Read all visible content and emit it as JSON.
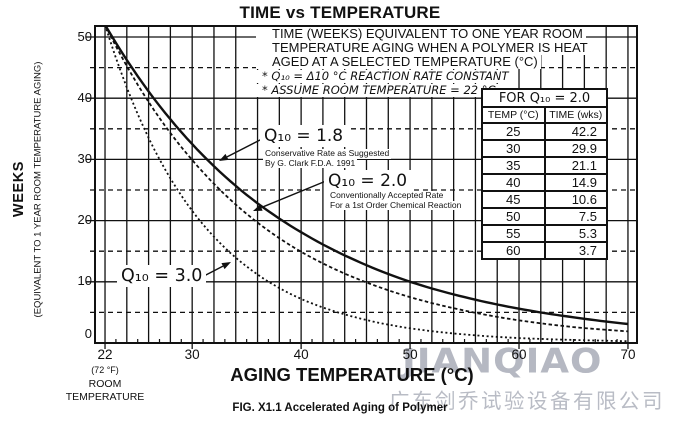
{
  "title": "TIME vs TEMPERATURE",
  "description": {
    "line1": "TIME (WEEKS) EQUIVALENT TO ONE YEAR ROOM",
    "line2": "TEMPERATURE AGING WHEN A POLYMER IS HEAT",
    "line3": "AGED AT A SELECTED TEMPERATURE (°C)",
    "note1": "* Q₁₀ = Δ10 °C REACTION RATE CONSTANT",
    "note2": "* ASSUME ROOM TEMPERATURE = 22 °C"
  },
  "curve_labels": {
    "q18": {
      "label": "Q₁₀ = 1.8",
      "caption1": "Conservative Rate as Suggested",
      "caption2": "By G. Clark F.D.A. 1991"
    },
    "q20": {
      "label": "Q₁₀ = 2.0",
      "caption1": "Conventionally Accepted Rate",
      "caption2": "For a 1st Order Chemical Reaction"
    },
    "q30": {
      "label": "Q₁₀ = 3.0"
    }
  },
  "table": {
    "title": "FOR Q₁₀ = 2.0",
    "col1": "TEMP (°C)",
    "col2": "TIME (wks)",
    "rows": [
      [
        "25",
        "42.2"
      ],
      [
        "30",
        "29.9"
      ],
      [
        "35",
        "21.1"
      ],
      [
        "40",
        "14.9"
      ],
      [
        "45",
        "10.6"
      ],
      [
        "50",
        "7.5"
      ],
      [
        "55",
        "5.3"
      ],
      [
        "60",
        "3.7"
      ]
    ]
  },
  "axes": {
    "y_title": "WEEKS",
    "y_subtitle": "(EQUIVALENT TO 1 YEAR ROOM TEMPERATURE AGING)",
    "x_title": "AGING TEMPERATURE (°C)",
    "room_note1": "(72 °F)",
    "room_note2": "ROOM",
    "room_note3": "TEMPERATURE",
    "y_ticks": [
      "50",
      "40",
      "30",
      "20",
      "10",
      "0"
    ],
    "x_ticks": [
      "22",
      "30",
      "40",
      "50",
      "60",
      "70"
    ]
  },
  "caption": "FIG. X1.1 Accelerated Aging of Polymer",
  "watermark": {
    "latin": "JIANQIAO",
    "cjk": "广东剑乔试验设备有限公司"
  },
  "colors": {
    "ink": "#111111",
    "watermark": "#b5b8c2",
    "background": "#ffffff"
  },
  "chart_data": {
    "type": "line",
    "title": "TIME vs TEMPERATURE",
    "xlabel": "AGING TEMPERATURE (°C)",
    "ylabel": "WEEKS (EQUIVALENT TO 1 YEAR ROOM TEMPERATURE AGING)",
    "xlim": [
      21.08,
      70.83
    ],
    "ylim": [
      0,
      51.8
    ],
    "x_tick_values": [
      22,
      30,
      40,
      50,
      60,
      70
    ],
    "y_tick_values": [
      0,
      10,
      20,
      30,
      40,
      50
    ],
    "x_grid_step": 2,
    "y_solid_grid_step": 10,
    "y_dashed_grid_values": [
      5,
      15,
      25,
      35,
      45
    ],
    "grid": true,
    "legend_position": "inline-labels",
    "series": [
      {
        "name": "Q₁₀ = 1.8",
        "line_style": "solid",
        "q10": 1.8,
        "x": [
          22,
          25,
          30,
          35,
          40,
          45,
          50,
          55,
          60,
          65,
          70
        ],
        "y": [
          52,
          43.6,
          32.5,
          24.2,
          18.1,
          13.5,
          10.0,
          7.5,
          5.6,
          4.2,
          3.1
        ]
      },
      {
        "name": "Q₁₀ = 2.0",
        "line_style": "dashed",
        "q10": 2.0,
        "x": [
          22,
          25,
          30,
          35,
          40,
          45,
          50,
          55,
          60,
          65,
          70
        ],
        "y": [
          52,
          42.2,
          29.9,
          21.1,
          14.9,
          10.6,
          7.5,
          5.3,
          3.7,
          2.6,
          1.9
        ]
      },
      {
        "name": "Q₁₀ = 3.0",
        "line_style": "dotted",
        "q10": 3.0,
        "x": [
          22,
          25,
          30,
          35,
          40,
          45,
          50,
          55,
          60,
          65,
          70
        ],
        "y": [
          52,
          37.4,
          21.6,
          12.5,
          7.2,
          4.2,
          2.4,
          1.4,
          0.8,
          0.5,
          0.3
        ]
      }
    ]
  }
}
